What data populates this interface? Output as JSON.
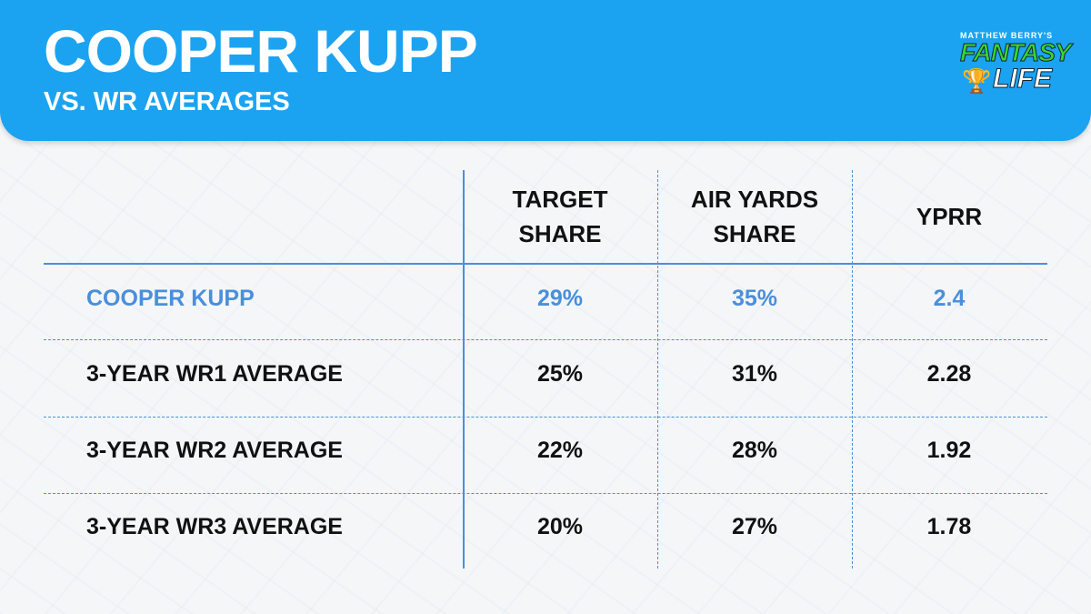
{
  "header": {
    "title": "COOPER KUPP",
    "subtitle": "VS. WR AVERAGES"
  },
  "logo": {
    "top": "MATTHEW BERRY'S",
    "middle": "FANTASY",
    "bottom": "LIFE"
  },
  "colors": {
    "header_bg": "#1ba3f1",
    "highlight": "#4a8fdb",
    "text": "#111111"
  },
  "chart_data": {
    "type": "table",
    "columns": [
      "",
      "TARGET SHARE",
      "AIR YARDS SHARE",
      "YPRR"
    ],
    "column_lines": [
      [
        "TARGET",
        "SHARE"
      ],
      [
        "AIR YARDS",
        "SHARE"
      ],
      [
        "YPRR",
        ""
      ]
    ],
    "rows": [
      {
        "label": "COOPER KUPP",
        "values": [
          "29%",
          "35%",
          "2.4"
        ],
        "highlight": true
      },
      {
        "label": "3-YEAR WR1 AVERAGE",
        "values": [
          "25%",
          "31%",
          "2.28"
        ]
      },
      {
        "label": "3-YEAR WR2 AVERAGE",
        "values": [
          "22%",
          "28%",
          "1.92"
        ]
      },
      {
        "label": "3-YEAR WR3 AVERAGE",
        "values": [
          "20%",
          "27%",
          "1.78"
        ]
      }
    ]
  }
}
